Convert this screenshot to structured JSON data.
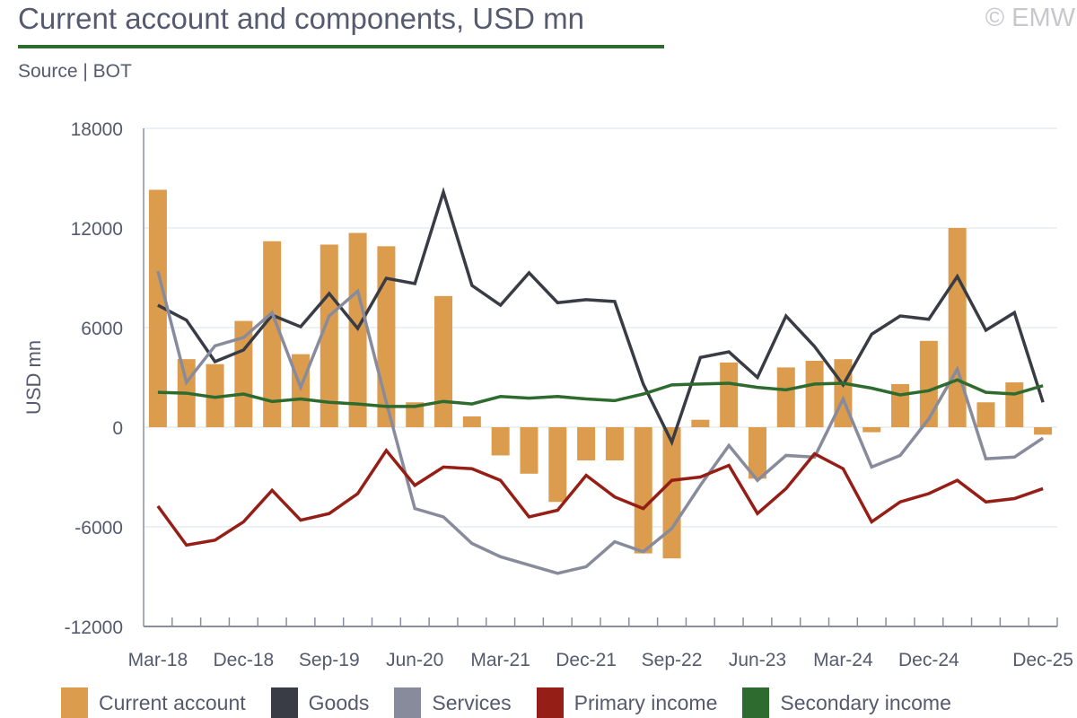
{
  "title": "Current account and components, USD mn",
  "copyright": "© EMW",
  "source": "Source | BOT",
  "chart_data": {
    "type": "bar+line",
    "title": "Current account and components, USD mn",
    "ylabel": "USD mn",
    "xlabel": "",
    "ylim": [
      -12000,
      18000
    ],
    "yticks": [
      18000,
      12000,
      6000,
      0,
      -6000,
      -12000
    ],
    "grid": true,
    "legend_position": "bottom",
    "categories": [
      "Mar-18",
      "Jun-18",
      "Sep-18",
      "Dec-18",
      "Mar-19",
      "Jun-19",
      "Sep-19",
      "Dec-19",
      "Mar-20",
      "Jun-20",
      "Sep-20",
      "Dec-20",
      "Mar-21",
      "Jun-21",
      "Sep-21",
      "Dec-21",
      "Mar-22",
      "Jun-22",
      "Sep-22",
      "Dec-22",
      "Mar-23",
      "Jun-23",
      "Sep-23",
      "Dec-23",
      "Mar-24",
      "Jun-24",
      "Sep-24",
      "Dec-24",
      "Mar-25",
      "Jun-25",
      "Sep-25",
      "Dec-25"
    ],
    "xtick_labels": [
      "Mar-18",
      "Dec-18",
      "Sep-19",
      "Jun-20",
      "Mar-21",
      "Dec-21",
      "Sep-22",
      "Jun-23",
      "Mar-24",
      "Dec-24",
      "Dec-25"
    ],
    "series": [
      {
        "name": "Current account",
        "type": "bar",
        "color": "#dc9c4e",
        "values": [
          14300,
          4100,
          3800,
          6400,
          11200,
          4400,
          11000,
          11700,
          10900,
          1500,
          7900,
          650,
          -1700,
          -2800,
          -4500,
          -2000,
          -2000,
          -7600,
          -7900,
          450,
          3900,
          -3100,
          3600,
          4000,
          4100,
          -300,
          2600,
          5200,
          12000,
          1500,
          2700,
          -450
        ]
      },
      {
        "name": "Goods",
        "type": "line",
        "color": "#393b45",
        "values": [
          7350,
          6450,
          3950,
          4650,
          6750,
          6050,
          8050,
          5950,
          8970,
          8650,
          14160,
          8540,
          7350,
          9300,
          7500,
          7680,
          7570,
          2600,
          -900,
          4200,
          4540,
          3000,
          6700,
          4860,
          2550,
          5600,
          6700,
          6500,
          9080,
          5840,
          6900,
          1500
        ]
      },
      {
        "name": "Services",
        "type": "line",
        "color": "#888b9c",
        "values": [
          9400,
          2700,
          4900,
          5400,
          6900,
          2400,
          6700,
          8200,
          1500,
          -4900,
          -5400,
          -7000,
          -7800,
          -8300,
          -8800,
          -8400,
          -6900,
          -7500,
          -6100,
          -3500,
          -1100,
          -3200,
          -1700,
          -1800,
          1700,
          -2400,
          -1700,
          500,
          3500,
          -1900,
          -1800,
          -650
        ]
      },
      {
        "name": "Primary income",
        "type": "line",
        "color": "#951e16",
        "values": [
          -4750,
          -7100,
          -6800,
          -5700,
          -3800,
          -5600,
          -5200,
          -4000,
          -1400,
          -3500,
          -2400,
          -2500,
          -3200,
          -5400,
          -5000,
          -2900,
          -4200,
          -4900,
          -3200,
          -3000,
          -2300,
          -5200,
          -3700,
          -1600,
          -2500,
          -5700,
          -4500,
          -4000,
          -3200,
          -4500,
          -4300,
          -3700
        ]
      },
      {
        "name": "Secondary income",
        "type": "line",
        "color": "#2e6b2e",
        "values": [
          2100,
          2050,
          1800,
          2000,
          1550,
          1700,
          1500,
          1400,
          1250,
          1250,
          1550,
          1400,
          1850,
          1750,
          1850,
          1700,
          1600,
          2000,
          2550,
          2600,
          2650,
          2400,
          2250,
          2600,
          2650,
          2350,
          1950,
          2200,
          2850,
          2100,
          2000,
          2500
        ]
      }
    ]
  }
}
